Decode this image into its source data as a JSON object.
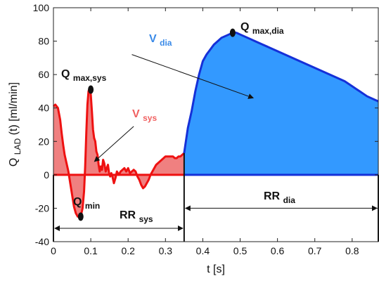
{
  "chart_data": {
    "type": "area",
    "xlabel": "t [s]",
    "ylabel": {
      "prefix": "Q",
      "sub": "LAD",
      "suffix": " (t) [ml/min]"
    },
    "xlim": [
      0,
      0.87
    ],
    "ylim": [
      -40,
      100
    ],
    "xticks": [
      0,
      0.1,
      0.2,
      0.3,
      0.4,
      0.5,
      0.6,
      0.7,
      0.8
    ],
    "yticks": [
      -40,
      -20,
      0,
      20,
      40,
      60,
      80,
      100
    ],
    "xtick_labels": [
      "0",
      "0.1",
      "0.2",
      "0.3",
      "0.4",
      "0.5",
      "0.6",
      "0.7",
      "0.8"
    ],
    "ytick_labels": [
      "-40",
      "-20",
      "0",
      "20",
      "40",
      "60",
      "80",
      "100"
    ],
    "series": [
      {
        "color": "#ee1111",
        "fill": "#f08080",
        "x": [
          0,
          0.005,
          0.012,
          0.018,
          0.022,
          0.026,
          0.03,
          0.035,
          0.04,
          0.045,
          0.05,
          0.055,
          0.06,
          0.065,
          0.07,
          0.074,
          0.078,
          0.082,
          0.085,
          0.088,
          0.091,
          0.094,
          0.097,
          0.1,
          0.103,
          0.106,
          0.109,
          0.112,
          0.115,
          0.118,
          0.121,
          0.124,
          0.127,
          0.13,
          0.133,
          0.136,
          0.14,
          0.143,
          0.146,
          0.149,
          0.152,
          0.155,
          0.158,
          0.162,
          0.166,
          0.17,
          0.175,
          0.18,
          0.185,
          0.19,
          0.195,
          0.2,
          0.205,
          0.21,
          0.215,
          0.22,
          0.225,
          0.23,
          0.235,
          0.24,
          0.245,
          0.25,
          0.255,
          0.26,
          0.265,
          0.27,
          0.275,
          0.28,
          0.285,
          0.29,
          0.295,
          0.3,
          0.305,
          0.31,
          0.315,
          0.32,
          0.325,
          0.33,
          0.335,
          0.34,
          0.345,
          0.35
        ],
        "y": [
          41,
          42,
          40,
          33,
          25,
          18,
          12,
          7,
          2,
          -5,
          -12,
          -19,
          -23,
          -25,
          -25,
          -24,
          -20,
          -10,
          5,
          25,
          42,
          50,
          52,
          48,
          38,
          27,
          22,
          20,
          14,
          12,
          6,
          2,
          5,
          3,
          9,
          7,
          2,
          4,
          6,
          1,
          -1,
          1,
          -1,
          -5,
          -2,
          2,
          0,
          2,
          3,
          4,
          2,
          4,
          1,
          2,
          3,
          2,
          -1,
          -3,
          -6,
          -8,
          -7,
          -5,
          -3,
          0,
          2,
          4,
          6,
          7,
          8,
          9,
          10,
          11,
          11,
          11,
          11,
          11,
          10,
          10,
          11,
          11,
          12,
          13
        ]
      },
      {
        "color": "#1530d8",
        "fill": "#3399ff",
        "x": [
          0.35,
          0.36,
          0.37,
          0.38,
          0.39,
          0.4,
          0.41,
          0.42,
          0.43,
          0.44,
          0.45,
          0.46,
          0.47,
          0.48,
          0.49,
          0.5,
          0.51,
          0.52,
          0.53,
          0.54,
          0.55,
          0.56,
          0.58,
          0.6,
          0.62,
          0.64,
          0.66,
          0.68,
          0.7,
          0.72,
          0.74,
          0.76,
          0.78,
          0.8,
          0.82,
          0.84,
          0.86,
          0.87
        ],
        "y": [
          13,
          28,
          38,
          50,
          60,
          68,
          72,
          75,
          78,
          80,
          82,
          83,
          84,
          85,
          85,
          84,
          83,
          82,
          81,
          80,
          79,
          78,
          76,
          74,
          72,
          70,
          68,
          66,
          64,
          62,
          60,
          58,
          56,
          53,
          50,
          47,
          45,
          44
        ]
      }
    ],
    "markers": [
      {
        "x": 0.1,
        "y": 51
      },
      {
        "x": 0.073,
        "y": -25
      },
      {
        "x": 0.48,
        "y": 85
      }
    ],
    "annotations": {
      "q_max_sys": {
        "main": "Q",
        "sub": "max,sys",
        "color": "#111111"
      },
      "q_min": {
        "main": "Q",
        "sub": "min",
        "color": "#111111"
      },
      "q_max_dia": {
        "main": "Q",
        "sub": "max,dia",
        "color": "#111111"
      },
      "v_sys": {
        "main": "V",
        "sub": "sys",
        "color": "#f06060"
      },
      "v_dia": {
        "main": "V",
        "sub": "dia",
        "color": "#3a8ae8"
      },
      "rr_sys": {
        "main": "RR",
        "sub": "sys",
        "color": "#111111"
      },
      "rr_dia": {
        "main": "RR",
        "sub": "dia",
        "color": "#111111"
      }
    },
    "intervals": {
      "sys": [
        0,
        0.35
      ],
      "dia": [
        0.35,
        0.87
      ],
      "y": -32
    },
    "grid": false
  }
}
